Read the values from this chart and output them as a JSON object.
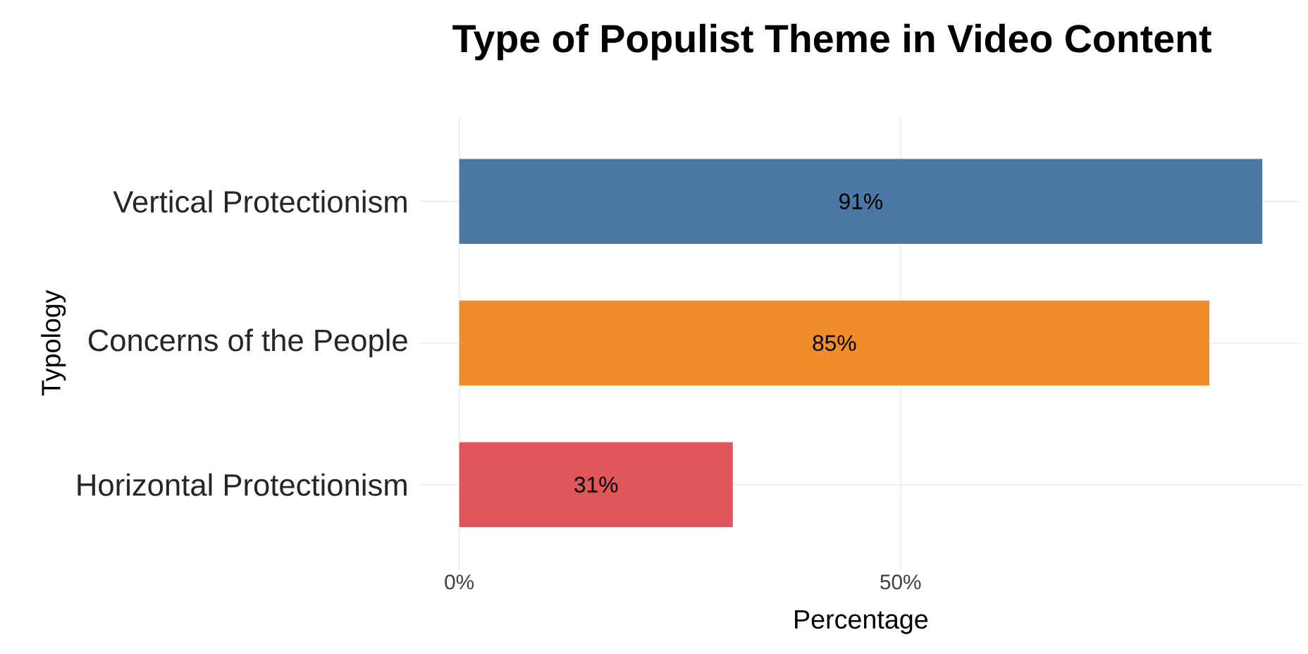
{
  "chart_data": {
    "type": "bar",
    "orientation": "horizontal",
    "title": "Type of Populist Theme in Video Content",
    "xlabel": "Percentage",
    "ylabel": "Typology",
    "categories": [
      "Vertical Protectionism",
      "Concerns of the People",
      "Horizontal Protectionism"
    ],
    "values": [
      91,
      85,
      31
    ],
    "colors": [
      "#4a77a3",
      "#ef8c2c",
      "#e15759"
    ],
    "value_labels": [
      "91%",
      "85%",
      "31%"
    ],
    "xlim": [
      -4.5,
      95.5
    ],
    "xticks": [
      {
        "value": 0,
        "label": "0%"
      },
      {
        "value": 50,
        "label": "50%"
      }
    ],
    "grid": true
  }
}
